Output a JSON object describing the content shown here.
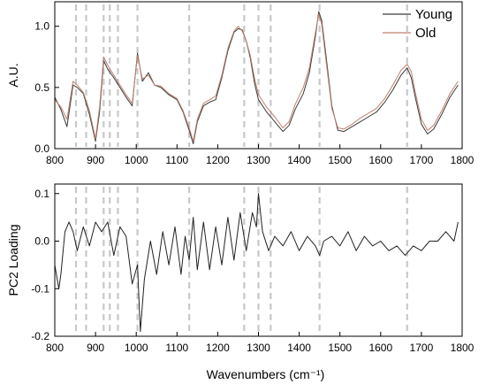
{
  "chart_data": [
    {
      "type": "line",
      "ylabel": "A.U.",
      "xlim": [
        800,
        1800
      ],
      "ylim": [
        0.0,
        1.2
      ],
      "x_ticks": [
        "800",
        "900",
        "1000",
        "1100",
        "1200",
        "1300",
        "1400",
        "1500",
        "1600",
        "1700",
        "1800"
      ],
      "y_ticks": [
        {
          "value": 0.0,
          "label": "0.0"
        },
        {
          "value": 0.5,
          "label": "0.5"
        },
        {
          "value": 1.0,
          "label": "1.0"
        }
      ],
      "grid": false,
      "legend": "top-right",
      "marked_wavenumbers": [
        852,
        877,
        920,
        935,
        955,
        1003,
        1130,
        1265,
        1300,
        1330,
        1450,
        1665
      ],
      "series": [
        {
          "name": "Young",
          "color": "#3a3a3a",
          "x": [
            800,
            815,
            830,
            845,
            855,
            870,
            885,
            900,
            910,
            920,
            930,
            945,
            960,
            975,
            990,
            1003,
            1015,
            1030,
            1045,
            1060,
            1080,
            1100,
            1115,
            1130,
            1140,
            1150,
            1165,
            1180,
            1195,
            1210,
            1225,
            1240,
            1250,
            1260,
            1270,
            1280,
            1290,
            1300,
            1320,
            1340,
            1360,
            1375,
            1390,
            1410,
            1425,
            1440,
            1448,
            1455,
            1465,
            1480,
            1495,
            1510,
            1530,
            1550,
            1570,
            1590,
            1610,
            1630,
            1650,
            1665,
            1675,
            1685,
            1700,
            1715,
            1730,
            1750,
            1770,
            1790
          ],
          "y": [
            0.42,
            0.32,
            0.18,
            0.52,
            0.5,
            0.45,
            0.28,
            0.06,
            0.3,
            0.72,
            0.65,
            0.58,
            0.5,
            0.42,
            0.35,
            0.78,
            0.55,
            0.62,
            0.52,
            0.5,
            0.44,
            0.4,
            0.3,
            0.15,
            0.04,
            0.22,
            0.35,
            0.38,
            0.4,
            0.58,
            0.8,
            0.95,
            0.98,
            0.97,
            0.88,
            0.74,
            0.54,
            0.4,
            0.3,
            0.22,
            0.14,
            0.19,
            0.32,
            0.45,
            0.62,
            0.92,
            1.12,
            1.05,
            0.78,
            0.35,
            0.15,
            0.14,
            0.18,
            0.22,
            0.26,
            0.3,
            0.38,
            0.48,
            0.6,
            0.66,
            0.58,
            0.42,
            0.2,
            0.12,
            0.16,
            0.28,
            0.42,
            0.52
          ]
        },
        {
          "name": "Old",
          "color": "#c0806c",
          "x": [
            800,
            815,
            830,
            845,
            855,
            870,
            885,
            900,
            910,
            920,
            930,
            945,
            960,
            975,
            990,
            1003,
            1015,
            1030,
            1045,
            1060,
            1080,
            1100,
            1115,
            1130,
            1140,
            1150,
            1165,
            1180,
            1195,
            1210,
            1225,
            1240,
            1250,
            1260,
            1270,
            1280,
            1290,
            1300,
            1320,
            1340,
            1360,
            1375,
            1390,
            1410,
            1425,
            1440,
            1448,
            1455,
            1465,
            1480,
            1495,
            1510,
            1530,
            1550,
            1570,
            1590,
            1610,
            1630,
            1650,
            1665,
            1675,
            1685,
            1700,
            1715,
            1730,
            1750,
            1770,
            1790
          ],
          "y": [
            0.4,
            0.34,
            0.24,
            0.55,
            0.52,
            0.46,
            0.31,
            0.08,
            0.34,
            0.75,
            0.68,
            0.6,
            0.52,
            0.44,
            0.37,
            0.76,
            0.57,
            0.6,
            0.52,
            0.51,
            0.45,
            0.41,
            0.31,
            0.17,
            0.06,
            0.24,
            0.37,
            0.4,
            0.43,
            0.6,
            0.82,
            0.96,
            1.0,
            0.96,
            0.88,
            0.76,
            0.58,
            0.44,
            0.34,
            0.26,
            0.17,
            0.22,
            0.36,
            0.5,
            0.66,
            0.95,
            1.1,
            1.02,
            0.74,
            0.33,
            0.17,
            0.16,
            0.2,
            0.25,
            0.29,
            0.33,
            0.41,
            0.52,
            0.64,
            0.69,
            0.63,
            0.46,
            0.24,
            0.15,
            0.19,
            0.31,
            0.45,
            0.55
          ]
        }
      ]
    },
    {
      "type": "line",
      "xlabel": "Wavenumbers (cm⁻¹)",
      "ylabel": "PC2 Loading",
      "xlim": [
        800,
        1800
      ],
      "ylim": [
        -0.2,
        0.12
      ],
      "x_ticks": [
        "800",
        "900",
        "1000",
        "1100",
        "1200",
        "1300",
        "1400",
        "1500",
        "1600",
        "1700",
        "1800"
      ],
      "y_ticks": [
        {
          "value": 0.1,
          "label": "0.1"
        },
        {
          "value": 0.0,
          "label": "0.0"
        },
        {
          "value": -0.1,
          "label": "-0.1"
        },
        {
          "value": -0.2,
          "label": "-0.2"
        }
      ],
      "grid": false,
      "marked_wavenumbers": [
        852,
        877,
        920,
        935,
        955,
        1003,
        1130,
        1265,
        1300,
        1330,
        1450,
        1665
      ],
      "series": [
        {
          "color": "#222222",
          "x": [
            800,
            810,
            815,
            825,
            835,
            845,
            855,
            870,
            885,
            900,
            915,
            930,
            945,
            960,
            975,
            990,
            1003,
            1010,
            1020,
            1035,
            1050,
            1065,
            1080,
            1095,
            1110,
            1120,
            1130,
            1140,
            1150,
            1165,
            1180,
            1195,
            1210,
            1225,
            1240,
            1255,
            1270,
            1285,
            1295,
            1300,
            1310,
            1325,
            1340,
            1360,
            1380,
            1400,
            1420,
            1440,
            1450,
            1460,
            1480,
            1500,
            1520,
            1540,
            1560,
            1580,
            1600,
            1620,
            1640,
            1660,
            1670,
            1680,
            1700,
            1720,
            1740,
            1760,
            1780,
            1790
          ],
          "y": [
            -0.05,
            -0.1,
            -0.07,
            0.02,
            0.04,
            0.02,
            -0.02,
            0.03,
            -0.01,
            0.04,
            0.02,
            0.04,
            -0.03,
            0.03,
            0.01,
            -0.09,
            -0.05,
            -0.19,
            -0.08,
            0.0,
            -0.07,
            0.02,
            -0.05,
            0.03,
            -0.07,
            0.01,
            -0.04,
            0.05,
            -0.06,
            0.04,
            -0.06,
            0.03,
            -0.05,
            0.05,
            -0.04,
            0.06,
            -0.02,
            0.06,
            0.03,
            0.1,
            0.02,
            -0.02,
            0.01,
            -0.01,
            0.02,
            -0.02,
            0.01,
            -0.01,
            -0.03,
            0.0,
            0.01,
            -0.01,
            0.02,
            -0.02,
            0.01,
            -0.01,
            0.0,
            -0.02,
            -0.01,
            -0.03,
            -0.02,
            -0.01,
            -0.02,
            0.0,
            0.0,
            0.02,
            0.0,
            0.04
          ]
        }
      ]
    }
  ]
}
